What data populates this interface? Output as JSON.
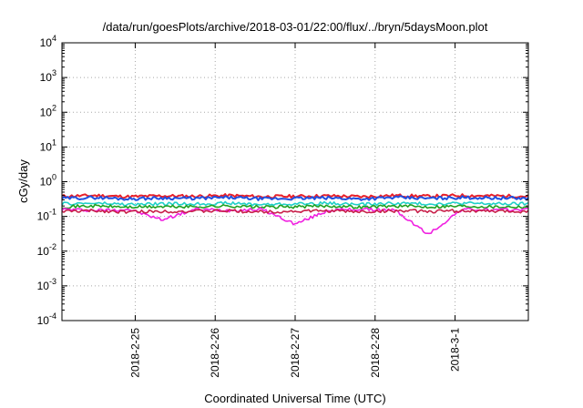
{
  "chart_data": {
    "type": "line",
    "title": "/data/run/goesPlots/archive/2018-03-01/22:00/flux/../bryn/5daysMoon.plot",
    "xlabel": "Coordinated Universal Time (UTC)",
    "ylabel": "cGy/day",
    "yscale": "log",
    "ylim": [
      0.0001,
      10000
    ],
    "xlim": [
      "2018-02-24 02:00",
      "2018-03-01 22:00"
    ],
    "grid": true,
    "legend": "none",
    "x_ticks": [
      "2018-2-25",
      "2018-2-26",
      "2018-2-27",
      "2018-2-28",
      "2018-3-1"
    ],
    "y_ticks": [
      {
        "base": "10",
        "exp": "-4",
        "value": 0.0001
      },
      {
        "base": "10",
        "exp": "-3",
        "value": 0.001
      },
      {
        "base": "10",
        "exp": "-2",
        "value": 0.01
      },
      {
        "base": "10",
        "exp": "-1",
        "value": 0.1
      },
      {
        "base": "10",
        "exp": "0",
        "value": 1
      },
      {
        "base": "10",
        "exp": "1",
        "value": 10
      },
      {
        "base": "10",
        "exp": "2",
        "value": 100
      },
      {
        "base": "10",
        "exp": "3",
        "value": 1000
      },
      {
        "base": "10",
        "exp": "4",
        "value": 10000
      }
    ],
    "x": [
      "2018-02-24 02:00",
      "2018-02-24 12:00",
      "2018-02-24 22:00",
      "2018-02-25 08:00",
      "2018-02-25 18:00",
      "2018-02-26 04:00",
      "2018-02-26 14:00",
      "2018-02-27 00:00",
      "2018-02-27 10:00",
      "2018-02-27 20:00",
      "2018-02-28 06:00",
      "2018-02-28 16:00",
      "2018-03-01 02:00",
      "2018-03-01 12:00",
      "2018-03-01 22:00"
    ],
    "series": [
      {
        "color": "#e8202a",
        "values": [
          0.38,
          0.4,
          0.37,
          0.39,
          0.38,
          0.4,
          0.37,
          0.38,
          0.39,
          0.37,
          0.4,
          0.38,
          0.4,
          0.39,
          0.38
        ]
      },
      {
        "color": "#2050e0",
        "values": [
          0.33,
          0.35,
          0.32,
          0.34,
          0.33,
          0.35,
          0.32,
          0.33,
          0.34,
          0.32,
          0.35,
          0.33,
          0.35,
          0.34,
          0.33
        ]
      },
      {
        "color": "#20d0c8",
        "values": [
          0.23,
          0.24,
          0.22,
          0.23,
          0.23,
          0.24,
          0.22,
          0.23,
          0.24,
          0.22,
          0.24,
          0.23,
          0.24,
          0.23,
          0.23
        ]
      },
      {
        "color": "#20a020",
        "values": [
          0.19,
          0.2,
          0.185,
          0.19,
          0.19,
          0.2,
          0.185,
          0.19,
          0.2,
          0.185,
          0.2,
          0.19,
          0.2,
          0.19,
          0.19
        ]
      },
      {
        "color": "#f020e0",
        "values": [
          0.16,
          0.15,
          0.16,
          0.08,
          0.16,
          0.15,
          0.16,
          0.06,
          0.15,
          0.16,
          0.15,
          0.03,
          0.16,
          0.15,
          0.16
        ]
      },
      {
        "color": "#c8204a",
        "values": [
          0.14,
          0.145,
          0.135,
          0.14,
          0.14,
          0.145,
          0.135,
          0.14,
          0.145,
          0.135,
          0.145,
          0.14,
          0.145,
          0.14,
          0.14
        ]
      }
    ]
  }
}
